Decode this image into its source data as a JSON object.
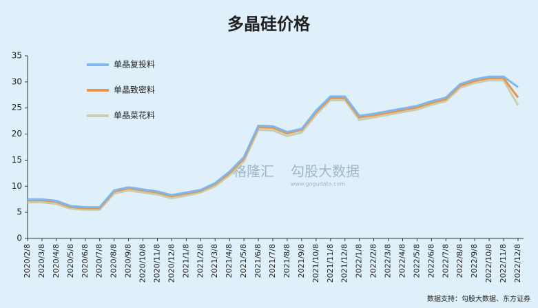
{
  "chart_data": {
    "type": "line",
    "title": "多晶硅价格",
    "categories": [
      "2020/2/8",
      "2020/3/8",
      "2020/4/8",
      "2020/5/8",
      "2020/6/8",
      "2020/7/8",
      "2020/8/8",
      "2020/9/8",
      "2020/10/8",
      "2020/11/8",
      "2020/12/8",
      "2021/1/8",
      "2021/2/8",
      "2021/3/8",
      "2021/4/8",
      "2021/5/8",
      "2021/6/8",
      "2021/7/8",
      "2021/8/8",
      "2021/9/8",
      "2021/10/8",
      "2021/11/8",
      "2021/12/8",
      "2022/1/8",
      "2022/2/8",
      "2022/3/8",
      "2022/4/8",
      "2022/5/8",
      "2022/6/8",
      "2022/7/8",
      "2022/8/8",
      "2022/9/8",
      "2022/10/8",
      "2022/11/8",
      "2022/12/8"
    ],
    "series": [
      {
        "name": "单晶复投料",
        "color": "#7fb6ee",
        "values": [
          7.5,
          7.5,
          7.2,
          6.2,
          6.0,
          6.0,
          9.2,
          9.8,
          9.4,
          9.0,
          8.3,
          8.8,
          9.3,
          10.6,
          12.8,
          15.6,
          21.6,
          21.5,
          20.4,
          21.0,
          24.5,
          27.2,
          27.2,
          23.5,
          23.9,
          24.4,
          24.9,
          25.4,
          26.3,
          27.0,
          29.6,
          30.5,
          31.0,
          31.0,
          29.0
        ]
      },
      {
        "name": "单晶致密料",
        "color": "#e8944a",
        "values": [
          7.3,
          7.3,
          7.0,
          6.0,
          5.8,
          5.8,
          9.0,
          9.6,
          9.2,
          8.8,
          8.1,
          8.6,
          9.1,
          10.4,
          12.5,
          15.3,
          21.3,
          21.2,
          20.1,
          20.8,
          24.2,
          26.9,
          26.9,
          23.2,
          23.6,
          24.1,
          24.6,
          25.1,
          26.0,
          26.7,
          29.3,
          30.2,
          30.7,
          30.7,
          27.0
        ]
      },
      {
        "name": "单晶菜花料",
        "color": "#c8cdb0",
        "values": [
          6.9,
          6.9,
          6.6,
          5.7,
          5.5,
          5.5,
          8.6,
          9.2,
          8.8,
          8.4,
          7.7,
          8.2,
          8.8,
          10.0,
          12.1,
          14.8,
          20.8,
          20.7,
          19.6,
          20.3,
          23.7,
          26.5,
          26.5,
          22.7,
          23.2,
          23.7,
          24.2,
          24.7,
          25.6,
          26.3,
          28.9,
          29.8,
          30.3,
          30.3,
          25.5
        ]
      }
    ],
    "ylim": [
      0,
      35
    ],
    "yticks": [
      0,
      5,
      10,
      15,
      20,
      25,
      30,
      35
    ],
    "watermark": [
      "格隆汇",
      "勾股大数据",
      "www.gogudata.com"
    ],
    "source": "数据支持：勾股大数据、东方证券"
  }
}
